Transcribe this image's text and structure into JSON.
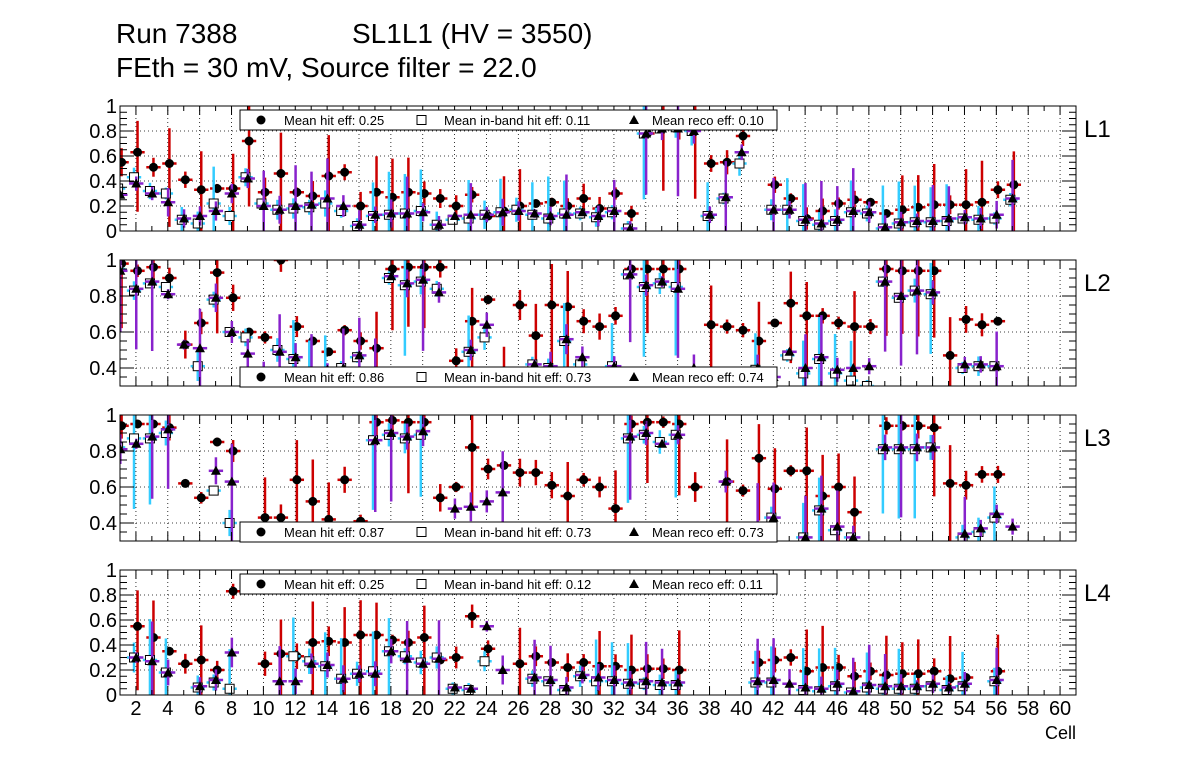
{
  "header": {
    "run": "Run 7388",
    "chamber": "SL1L1 (HV = 3550)",
    "settings": "FEth = 30 mV, Source filter = 22.0"
  },
  "colors": {
    "hit_error": "#cc0000",
    "inband_error": "#33ccff",
    "reco_error": "#8822cc",
    "grid": "#000000",
    "marker": "#000000"
  },
  "chart_data": {
    "type": "scatter",
    "xlabel": "Cell",
    "xlim": [
      1,
      61
    ],
    "x_ticks": [
      "2",
      "4",
      "6",
      "8",
      "10",
      "12",
      "14",
      "16",
      "18",
      "20",
      "22",
      "24",
      "26",
      "28",
      "30",
      "32",
      "34",
      "36",
      "38",
      "40",
      "42",
      "44",
      "46",
      "48",
      "50",
      "52",
      "54",
      "56",
      "58",
      "60"
    ],
    "legend_labels": {
      "hit": "Mean hit  eff:",
      "inband": "Mean in-band hit eff:",
      "reco": "Mean reco eff:"
    },
    "layers": [
      {
        "label": "L1",
        "ylim": [
          0,
          1
        ],
        "y_ticks": [
          "0",
          "0.2",
          "0.4",
          "0.6",
          "0.8",
          "1"
        ],
        "legend_pos": "top",
        "mean_hit": "0.25",
        "mean_inband": "0.11",
        "mean_reco": "0.10",
        "hit": [
          0.55,
          0.63,
          0.51,
          0.54,
          0.41,
          0.33,
          0.34,
          0.34,
          0.72,
          0.31,
          0.46,
          0.31,
          0.28,
          0.44,
          0.47,
          0.2,
          0.31,
          0.27,
          0.31,
          0.3,
          0.26,
          0.2,
          0.29,
          0.12,
          0.16,
          0.2,
          0.22,
          0.23,
          0.2,
          0.26,
          0.18,
          0.3,
          0.14,
          0.78,
          0.85,
          0.85,
          0.82,
          0.54,
          0.55,
          0.76,
          null,
          0.37,
          0.26,
          0.1,
          0.16,
          0.22,
          0.25,
          0.23,
          0.14,
          0.17,
          0.19,
          0.21,
          0.21,
          0.21,
          0.23,
          0.33,
          0.37
        ],
        "inband": [
          0.34,
          0.43,
          0.32,
          0.3,
          0.09,
          0.06,
          0.22,
          0.12,
          0.43,
          0.22,
          0.17,
          0.18,
          0.19,
          0.22,
          0.16,
          0.04,
          0.12,
          0.13,
          0.14,
          0.16,
          0.05,
          0.09,
          0.1,
          0.13,
          0.15,
          0.17,
          0.13,
          0.1,
          0.14,
          0.14,
          0.11,
          0.15,
          0.02,
          0.78,
          0.82,
          0.83,
          0.8,
          0.12,
          0.26,
          0.54,
          null,
          0.17,
          0.17,
          0.08,
          0.05,
          0.08,
          0.15,
          0.14,
          0.02,
          0.06,
          0.07,
          0.07,
          0.08,
          0.1,
          0.09,
          0.1,
          0.25
        ],
        "reco": [
          0.29,
          0.38,
          0.3,
          0.23,
          0.1,
          0.12,
          0.16,
          0.3,
          0.42,
          0.2,
          0.17,
          0.2,
          0.21,
          0.26,
          0.2,
          0.05,
          0.13,
          0.14,
          0.14,
          0.15,
          0.05,
          0.12,
          0.13,
          0.13,
          0.15,
          0.16,
          0.14,
          0.12,
          0.13,
          0.15,
          0.12,
          0.16,
          0.02,
          0.78,
          0.82,
          0.82,
          0.8,
          0.13,
          0.27,
          0.63,
          null,
          0.17,
          0.17,
          0.09,
          0.06,
          0.09,
          0.16,
          0.15,
          0.03,
          0.07,
          0.08,
          0.08,
          0.1,
          0.11,
          0.1,
          0.13,
          0.26
        ]
      },
      {
        "label": "L2",
        "ylim": [
          0.3,
          1
        ],
        "y_ticks": [
          "0.4",
          "0.6",
          "0.8",
          "1"
        ],
        "legend_pos": "bottom",
        "mean_hit": "0.86",
        "mean_inband": "0.73",
        "mean_reco": "0.74",
        "hit": [
          0.98,
          0.94,
          0.96,
          0.9,
          0.53,
          0.65,
          0.93,
          0.79,
          0.6,
          0.57,
          1.0,
          0.63,
          0.55,
          0.49,
          0.61,
          0.55,
          0.51,
          0.95,
          0.96,
          0.96,
          0.96,
          0.44,
          0.66,
          0.78,
          0.34,
          0.75,
          0.58,
          0.75,
          0.74,
          0.66,
          0.63,
          0.69,
          0.95,
          0.95,
          0.95,
          0.95,
          0.34,
          0.64,
          0.63,
          0.61,
          0.55,
          0.65,
          0.76,
          0.69,
          0.69,
          0.65,
          0.63,
          0.63,
          0.95,
          0.94,
          0.94,
          0.94,
          0.47,
          0.67,
          0.64,
          0.66
        ],
        "inband": [
          0.95,
          0.83,
          0.87,
          0.85,
          null,
          0.41,
          0.78,
          0.6,
          0.57,
          null,
          0.5,
          0.45,
          0.38,
          0.38,
          0.4,
          0.46,
          0.36,
          0.9,
          0.86,
          0.88,
          0.84,
          null,
          0.49,
          0.57,
          null,
          null,
          0.42,
          0.4,
          0.55,
          0.42,
          null,
          0.41,
          0.92,
          0.85,
          0.87,
          0.85,
          null,
          null,
          null,
          null,
          0.39,
          null,
          0.47,
          0.37,
          0.45,
          0.37,
          0.33,
          0.3,
          0.88,
          0.79,
          0.83,
          0.81,
          null,
          0.4,
          0.41,
          0.41
        ],
        "reco": [
          0.94,
          0.84,
          0.88,
          0.81,
          0.53,
          0.51,
          0.79,
          0.6,
          0.48,
          0.36,
          0.49,
          0.46,
          0.38,
          0.39,
          0.4,
          0.47,
          0.36,
          0.91,
          0.87,
          0.89,
          0.82,
          null,
          0.5,
          0.64,
          null,
          null,
          0.42,
          0.41,
          0.56,
          0.46,
          null,
          0.41,
          0.92,
          0.86,
          0.88,
          0.84,
          0.4,
          null,
          null,
          null,
          0.4,
          0.35,
          0.49,
          0.4,
          0.46,
          0.39,
          0.4,
          0.41,
          0.88,
          0.8,
          0.83,
          0.82,
          null,
          0.42,
          0.42,
          0.41
        ]
      },
      {
        "label": "L3",
        "ylim": [
          0.3,
          1
        ],
        "y_ticks": [
          "0.4",
          "0.6",
          "0.8",
          "1"
        ],
        "legend_pos": "bottom",
        "mean_hit": "0.87",
        "mean_inband": "0.73",
        "mean_reco": "0.73",
        "hit": [
          0.94,
          0.95,
          0.95,
          0.93,
          0.62,
          0.54,
          0.85,
          0.8,
          null,
          0.43,
          0.43,
          0.64,
          0.52,
          0.42,
          0.64,
          0.41,
          0.96,
          0.97,
          0.96,
          0.96,
          0.54,
          0.6,
          0.82,
          0.7,
          0.72,
          0.68,
          0.68,
          0.61,
          0.55,
          0.64,
          0.6,
          0.48,
          0.95,
          0.96,
          0.96,
          0.95,
          0.6,
          null,
          0.63,
          0.58,
          0.76,
          0.59,
          0.69,
          0.69,
          0.55,
          0.6,
          0.46,
          null,
          0.94,
          0.94,
          0.94,
          0.93,
          0.62,
          0.61,
          0.67,
          0.67,
          null
        ],
        "inband": [
          0.82,
          0.87,
          0.87,
          0.9,
          null,
          null,
          0.58,
          0.4,
          null,
          null,
          null,
          null,
          null,
          null,
          null,
          null,
          0.86,
          0.89,
          0.87,
          0.89,
          null,
          null,
          null,
          null,
          null,
          null,
          null,
          null,
          null,
          null,
          null,
          null,
          0.87,
          0.89,
          0.85,
          0.89,
          null,
          null,
          null,
          null,
          null,
          0.43,
          null,
          0.32,
          0.47,
          0.36,
          0.32,
          null,
          0.81,
          0.81,
          0.81,
          0.82,
          null,
          0.32,
          0.35,
          0.43,
          null
        ],
        "reco": [
          0.81,
          0.84,
          0.88,
          0.92,
          null,
          null,
          0.69,
          0.63,
          null,
          null,
          null,
          null,
          null,
          null,
          null,
          null,
          0.86,
          0.9,
          0.88,
          0.91,
          null,
          0.48,
          0.49,
          0.52,
          0.57,
          null,
          null,
          null,
          null,
          null,
          null,
          null,
          0.88,
          0.9,
          0.84,
          0.89,
          null,
          null,
          0.63,
          null,
          0.38,
          0.43,
          null,
          0.32,
          0.48,
          0.38,
          0.32,
          null,
          0.82,
          0.82,
          0.82,
          0.82,
          null,
          0.34,
          0.37,
          0.45,
          0.38
        ]
      },
      {
        "label": "L4",
        "ylim": [
          0,
          1
        ],
        "y_ticks": [
          "0",
          "0.2",
          "0.4",
          "0.6",
          "0.8",
          "1"
        ],
        "legend_pos": "top",
        "mean_hit": "0.25",
        "mean_inband": "0.12",
        "mean_reco": "0.11",
        "hit": [
          null,
          0.55,
          0.46,
          0.35,
          0.25,
          0.28,
          0.2,
          0.83,
          null,
          0.25,
          0.33,
          0.31,
          0.42,
          0.43,
          0.42,
          0.48,
          0.48,
          0.44,
          0.42,
          0.46,
          0.28,
          0.3,
          0.63,
          0.37,
          null,
          0.25,
          0.31,
          0.26,
          0.22,
          0.26,
          0.23,
          0.23,
          0.2,
          0.21,
          0.21,
          0.2,
          null,
          null,
          null,
          null,
          0.26,
          0.28,
          0.3,
          0.19,
          0.22,
          0.22,
          0.15,
          0.19,
          0.16,
          0.17,
          0.17,
          0.19,
          0.13,
          0.14,
          null,
          0.19
        ],
        "inband": [
          null,
          0.3,
          0.28,
          0.18,
          null,
          0.06,
          0.1,
          0.05,
          null,
          null,
          null,
          0.31,
          0.27,
          0.23,
          0.13,
          0.17,
          0.19,
          0.35,
          0.31,
          0.26,
          0.3,
          0.05,
          0.04,
          0.27,
          null,
          null,
          0.13,
          0.11,
          0.04,
          0.15,
          0.11,
          0.11,
          0.09,
          0.09,
          0.08,
          0.08,
          null,
          null,
          null,
          null,
          0.1,
          0.1,
          null,
          0.04,
          0.03,
          0.07,
          0.02,
          0.06,
          0.05,
          0.05,
          0.05,
          0.07,
          0.04,
          0.07,
          null,
          0.11
        ],
        "reco": [
          null,
          0.3,
          0.27,
          0.18,
          null,
          0.07,
          0.12,
          0.34,
          null,
          null,
          0.11,
          0.11,
          0.25,
          0.24,
          0.13,
          0.17,
          0.17,
          0.35,
          0.29,
          0.25,
          0.29,
          0.06,
          0.05,
          0.55,
          0.2,
          null,
          0.14,
          0.12,
          0.06,
          0.16,
          0.14,
          0.12,
          0.1,
          0.11,
          0.1,
          0.1,
          null,
          null,
          null,
          null,
          0.11,
          0.12,
          0.09,
          0.06,
          0.05,
          0.09,
          0.03,
          0.08,
          0.07,
          0.07,
          0.07,
          0.09,
          0.06,
          0.09,
          null,
          0.12
        ]
      }
    ]
  }
}
